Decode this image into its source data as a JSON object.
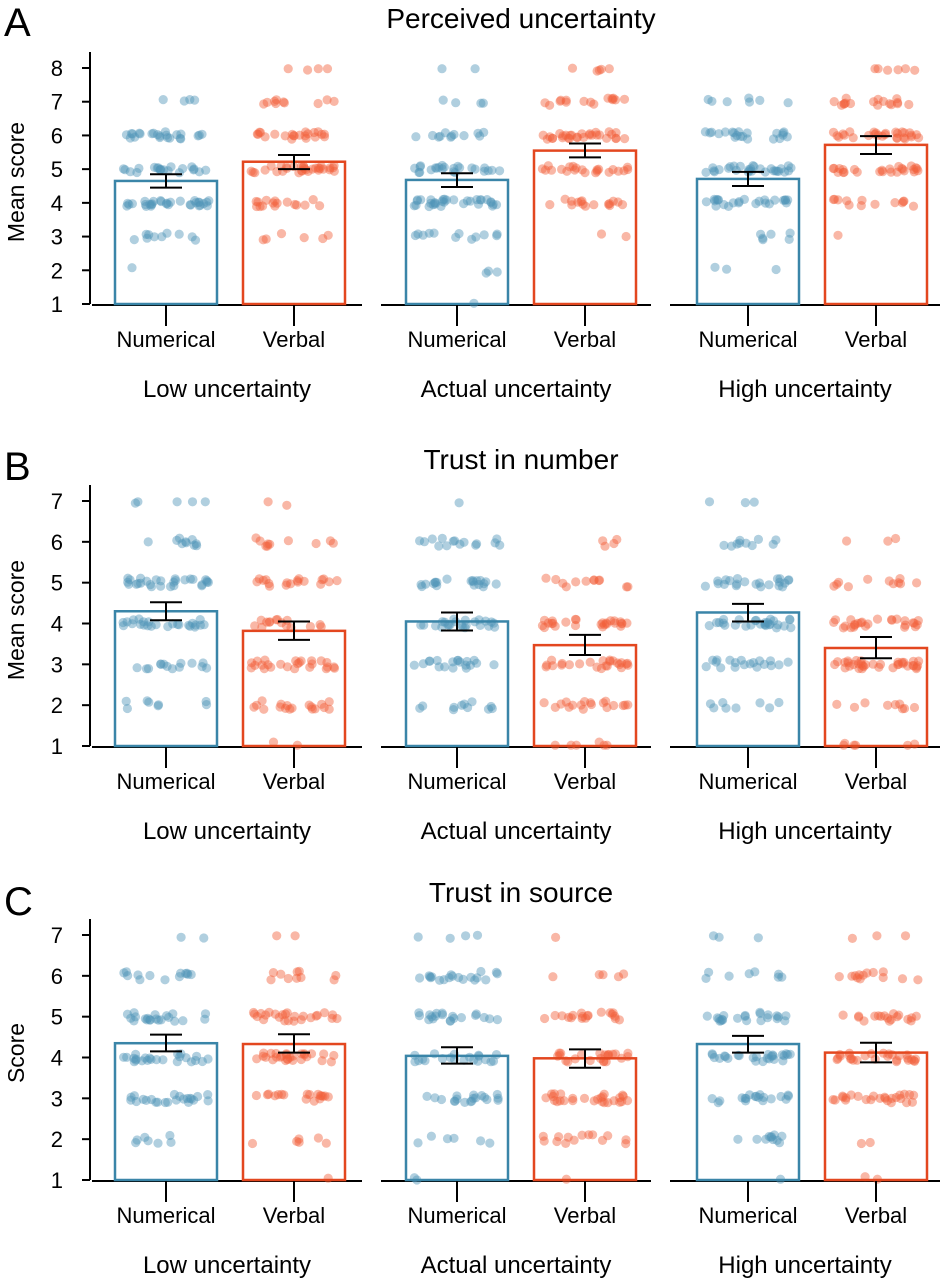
{
  "colors": {
    "numerical": "#3a85a8",
    "numerical_dot": "#4f95b8",
    "verbal": "#e3471f",
    "verbal_dot": "#f2603a",
    "axis": "#000000"
  },
  "chart_data": [
    {
      "panel_label": "A",
      "title": "Perceived uncertainty",
      "type": "bar",
      "ylabel": "Mean score",
      "ylim": [
        1,
        8
      ],
      "yticks": [
        "1",
        "2",
        "3",
        "4",
        "5",
        "6",
        "7",
        "8"
      ],
      "groups": [
        {
          "label": "Low uncertainty",
          "bars": [
            {
              "label": "Numerical",
              "value": 4.65,
              "ci": [
                4.45,
                4.85
              ]
            },
            {
              "label": "Verbal",
              "value": 5.22,
              "ci": [
                5.0,
                5.42
              ]
            }
          ]
        },
        {
          "label": "Actual uncertainty",
          "bars": [
            {
              "label": "Numerical",
              "value": 4.68,
              "ci": [
                4.47,
                4.88
              ]
            },
            {
              "label": "Verbal",
              "value": 5.55,
              "ci": [
                5.35,
                5.76
              ]
            }
          ]
        },
        {
          "label": "High uncertainty",
          "bars": [
            {
              "label": "Numerical",
              "value": 4.71,
              "ci": [
                4.5,
                4.92
              ]
            },
            {
              "label": "Verbal",
              "value": 5.72,
              "ci": [
                5.45,
                5.98
              ]
            }
          ]
        }
      ]
    },
    {
      "panel_label": "B",
      "title": "Trust in number",
      "type": "bar",
      "ylabel": "Mean score",
      "ylim": [
        1,
        7.5
      ],
      "yticks": [
        "1",
        "2",
        "3",
        "4",
        "5",
        "6",
        "7"
      ],
      "groups": [
        {
          "label": "Low uncertainty",
          "bars": [
            {
              "label": "Numerical",
              "value": 4.3,
              "ci": [
                4.08,
                4.52
              ]
            },
            {
              "label": "Verbal",
              "value": 3.82,
              "ci": [
                3.6,
                4.05
              ]
            }
          ]
        },
        {
          "label": "Actual uncertainty",
          "bars": [
            {
              "label": "Numerical",
              "value": 4.05,
              "ci": [
                3.83,
                4.27
              ]
            },
            {
              "label": "Verbal",
              "value": 3.47,
              "ci": [
                3.23,
                3.72
              ]
            }
          ]
        },
        {
          "label": "High uncertainty",
          "bars": [
            {
              "label": "Numerical",
              "value": 4.27,
              "ci": [
                4.05,
                4.48
              ]
            },
            {
              "label": "Verbal",
              "value": 3.4,
              "ci": [
                3.15,
                3.67
              ]
            }
          ]
        }
      ]
    },
    {
      "panel_label": "C",
      "title": "Trust in source",
      "type": "bar",
      "ylabel": "Score",
      "ylim": [
        1,
        7.5
      ],
      "yticks": [
        "1",
        "2",
        "3",
        "4",
        "5",
        "6",
        "7"
      ],
      "groups": [
        {
          "label": "Low uncertainty",
          "bars": [
            {
              "label": "Numerical",
              "value": 4.35,
              "ci": [
                4.15,
                4.56
              ]
            },
            {
              "label": "Verbal",
              "value": 4.33,
              "ci": [
                4.12,
                4.57
              ]
            }
          ]
        },
        {
          "label": "Actual uncertainty",
          "bars": [
            {
              "label": "Numerical",
              "value": 4.04,
              "ci": [
                3.85,
                4.25
              ]
            },
            {
              "label": "Verbal",
              "value": 3.98,
              "ci": [
                3.75,
                4.2
              ]
            }
          ]
        },
        {
          "label": "High uncertainty",
          "bars": [
            {
              "label": "Numerical",
              "value": 4.33,
              "ci": [
                4.12,
                4.53
              ]
            },
            {
              "label": "Verbal",
              "value": 4.12,
              "ci": [
                3.88,
                4.36
              ]
            }
          ]
        }
      ]
    }
  ]
}
